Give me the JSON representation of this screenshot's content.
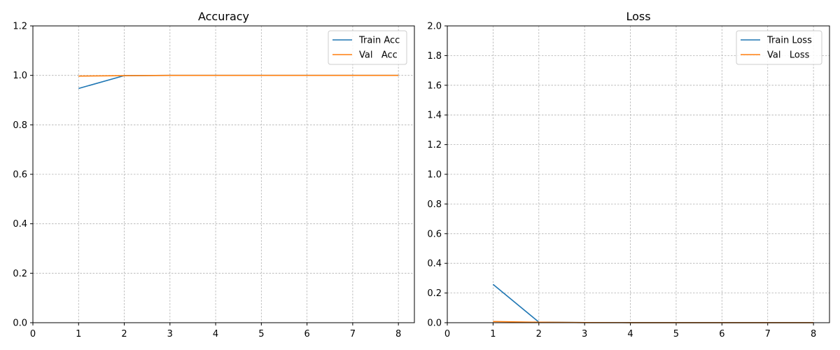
{
  "chart_data": [
    {
      "type": "line",
      "title": "Accuracy",
      "xlabel": "",
      "ylabel": "",
      "xlim": [
        0,
        8.35
      ],
      "ylim": [
        0,
        1.2
      ],
      "xticks": [
        "0",
        "1",
        "2",
        "3",
        "4",
        "5",
        "6",
        "7",
        "8"
      ],
      "yticks": [
        "0.0",
        "0.2",
        "0.4",
        "0.6",
        "0.8",
        "1.0",
        "1.2"
      ],
      "grid": true,
      "legend_position": "top-right",
      "x": [
        1,
        2,
        3,
        4,
        5,
        6,
        7,
        8
      ],
      "series": [
        {
          "name": "Train Acc",
          "color": "#1f77b4",
          "values": [
            0.947,
            0.999,
            1.0,
            1.0,
            1.0,
            1.0,
            1.0,
            1.0
          ]
        },
        {
          "name": "Val   Acc",
          "color": "#ff7f0e",
          "values": [
            0.997,
            0.999,
            1.0,
            1.0,
            1.0,
            1.0,
            1.0,
            1.0
          ]
        }
      ]
    },
    {
      "type": "line",
      "title": "Loss",
      "xlabel": "",
      "ylabel": "",
      "xlim": [
        0,
        8.35
      ],
      "ylim": [
        0,
        2.0
      ],
      "xticks": [
        "0",
        "1",
        "2",
        "3",
        "4",
        "5",
        "6",
        "7",
        "8"
      ],
      "yticks": [
        "0.0",
        "0.2",
        "0.4",
        "0.6",
        "0.8",
        "1.0",
        "1.2",
        "1.4",
        "1.6",
        "1.8",
        "2.0"
      ],
      "grid": true,
      "legend_position": "top-right",
      "x": [
        1,
        2,
        3,
        4,
        5,
        6,
        7,
        8
      ],
      "series": [
        {
          "name": "Train Loss",
          "color": "#1f77b4",
          "values": [
            0.258,
            0.004,
            0.001,
            0.0005,
            0.0003,
            0.0002,
            0.0002,
            0.0001
          ]
        },
        {
          "name": "Val   Loss",
          "color": "#ff7f0e",
          "values": [
            0.008,
            0.003,
            0.001,
            0.0005,
            0.0003,
            0.0002,
            0.0002,
            0.0001
          ]
        }
      ]
    }
  ]
}
